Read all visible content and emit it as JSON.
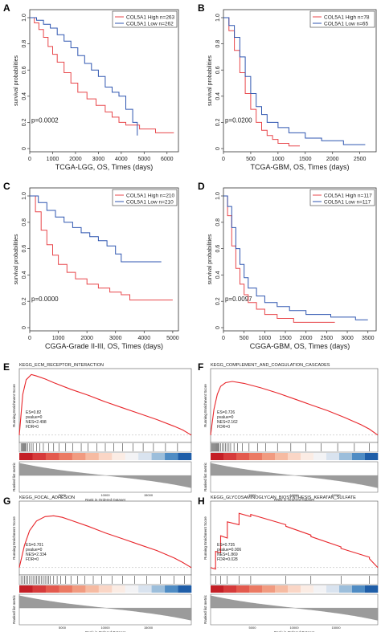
{
  "chart_data": [
    {
      "type": "line",
      "panel_label": "A",
      "xlabel": "TCGA-LGG, OS, Times (days)",
      "ylabel": "survival probabilities",
      "xlim": [
        0,
        6500
      ],
      "ylim": [
        0,
        1
      ],
      "xticks": [
        "0",
        "1000",
        "2000",
        "3000",
        "4000",
        "5000",
        "6000"
      ],
      "yticks": [
        "0",
        "0.2",
        "0.4",
        "0.6",
        "0.8",
        "1.0"
      ],
      "pvalue": "p=0.0002",
      "legend_position": "top-right",
      "series": [
        {
          "name": "COL5A1 High n=263",
          "color": "#e8474b",
          "x": [
            0,
            200,
            400,
            600,
            800,
            1000,
            1200,
            1500,
            1800,
            2100,
            2500,
            2900,
            3300,
            3600,
            3900,
            4200,
            4800,
            5500,
            6000,
            6300
          ],
          "y": [
            1.0,
            0.96,
            0.91,
            0.85,
            0.78,
            0.72,
            0.66,
            0.58,
            0.5,
            0.43,
            0.38,
            0.33,
            0.28,
            0.24,
            0.2,
            0.18,
            0.15,
            0.12,
            0.12,
            0.12
          ]
        },
        {
          "name": "COL5A1 Low n=262",
          "color": "#2f56b0",
          "x": [
            0,
            300,
            600,
            900,
            1200,
            1500,
            1800,
            2100,
            2400,
            2700,
            3000,
            3300,
            3600,
            3900,
            4200,
            4500,
            4700
          ],
          "y": [
            1.0,
            0.98,
            0.95,
            0.92,
            0.87,
            0.82,
            0.77,
            0.71,
            0.65,
            0.6,
            0.55,
            0.47,
            0.43,
            0.4,
            0.3,
            0.2,
            0.1
          ]
        }
      ]
    },
    {
      "type": "line",
      "panel_label": "B",
      "xlabel": "TCGA-GBM, OS, Times (days)",
      "ylabel": "survival probabilities",
      "xlim": [
        0,
        2800
      ],
      "ylim": [
        0,
        1
      ],
      "xticks": [
        "0",
        "500",
        "1000",
        "1500",
        "2000",
        "2500"
      ],
      "yticks": [
        "0",
        "0.2",
        "0.4",
        "0.6",
        "0.8",
        "1.0"
      ],
      "pvalue": "p=0.0200",
      "legend_position": "top-right",
      "series": [
        {
          "name": "COL5A1 High n=78",
          "color": "#e8474b",
          "x": [
            0,
            100,
            200,
            300,
            400,
            500,
            600,
            700,
            800,
            900,
            1000,
            1200,
            1400
          ],
          "y": [
            1.0,
            0.9,
            0.75,
            0.58,
            0.42,
            0.3,
            0.2,
            0.14,
            0.1,
            0.07,
            0.04,
            0.02,
            0.02
          ]
        },
        {
          "name": "COL5A1 Low n=65",
          "color": "#2f56b0",
          "x": [
            0,
            100,
            200,
            300,
            400,
            500,
            600,
            700,
            800,
            1000,
            1200,
            1500,
            1800,
            2200,
            2600
          ],
          "y": [
            1.0,
            0.94,
            0.85,
            0.7,
            0.55,
            0.42,
            0.32,
            0.26,
            0.2,
            0.16,
            0.12,
            0.08,
            0.06,
            0.03,
            0.03
          ]
        }
      ]
    },
    {
      "type": "line",
      "panel_label": "C",
      "xlabel": "CGGA-Grade II-III, OS, Times (days)",
      "ylabel": "survival probabilities",
      "xlim": [
        0,
        5200
      ],
      "ylim": [
        0,
        1
      ],
      "xticks": [
        "0",
        "1000",
        "2000",
        "3000",
        "4000",
        "5000"
      ],
      "yticks": [
        "0",
        "0.2",
        "0.4",
        "0.6",
        "0.8",
        "1.0"
      ],
      "pvalue": "p=0.0000",
      "legend_position": "top-right",
      "series": [
        {
          "name": "COL5A1 High n=210",
          "color": "#e8474b",
          "x": [
            0,
            200,
            400,
            600,
            800,
            1000,
            1300,
            1600,
            2000,
            2400,
            2800,
            3200,
            3500,
            4000,
            5000
          ],
          "y": [
            1.0,
            0.88,
            0.74,
            0.63,
            0.55,
            0.48,
            0.42,
            0.37,
            0.33,
            0.3,
            0.27,
            0.25,
            0.21,
            0.21,
            0.21
          ]
        },
        {
          "name": "COL5A1 Low n=210",
          "color": "#2f56b0",
          "x": [
            0,
            300,
            600,
            900,
            1200,
            1500,
            1800,
            2100,
            2400,
            2700,
            3000,
            3200,
            4000,
            4600
          ],
          "y": [
            1.0,
            0.95,
            0.89,
            0.84,
            0.8,
            0.76,
            0.72,
            0.69,
            0.66,
            0.62,
            0.56,
            0.5,
            0.5,
            0.5
          ]
        }
      ]
    },
    {
      "type": "line",
      "panel_label": "D",
      "xlabel": "CGGA-GBM, OS, Times (days)",
      "ylabel": "survival probabilities",
      "xlim": [
        0,
        3700
      ],
      "ylim": [
        0,
        1
      ],
      "xticks": [
        "0",
        "500",
        "1000",
        "1500",
        "2000",
        "2500",
        "3000",
        "3500"
      ],
      "yticks": [
        "0",
        "0.2",
        "0.4",
        "0.6",
        "0.8",
        "1.0"
      ],
      "pvalue": "p=0.0097",
      "legend_position": "top-right",
      "series": [
        {
          "name": "COL5A1 High n=117",
          "color": "#e8474b",
          "x": [
            0,
            100,
            200,
            300,
            400,
            500,
            600,
            800,
            1000,
            1300,
            1700,
            2200,
            2700
          ],
          "y": [
            1.0,
            0.85,
            0.62,
            0.45,
            0.33,
            0.25,
            0.19,
            0.14,
            0.1,
            0.07,
            0.04,
            0.04,
            0.04
          ]
        },
        {
          "name": "COL5A1 Low n=117",
          "color": "#2f56b0",
          "x": [
            0,
            100,
            200,
            300,
            400,
            500,
            600,
            800,
            1000,
            1300,
            1600,
            2000,
            2600,
            3200,
            3500
          ],
          "y": [
            1.0,
            0.92,
            0.76,
            0.6,
            0.48,
            0.38,
            0.3,
            0.24,
            0.19,
            0.16,
            0.13,
            0.1,
            0.08,
            0.06,
            0.06
          ]
        }
      ]
    },
    {
      "type": "line",
      "panel_label": "E",
      "title": "KEGG_ECM_RECEPTOR_INTERACTION",
      "ylabel": "Running Enrichment Score",
      "ylabel_bottom": "Ranked list metric",
      "xlabel": "Rank in Ordered Dataset",
      "xticks": [
        "5000",
        "10000",
        "15000"
      ],
      "stats": [
        "ES=0.82",
        "pvalue=0",
        "NES=2.498",
        "FDR=0"
      ],
      "curve": {
        "color": "#e8262b",
        "x": [
          0,
          0.02,
          0.04,
          0.07,
          0.1,
          0.15,
          0.2,
          0.3,
          0.4,
          0.5,
          0.6,
          0.7,
          0.8,
          0.9,
          0.95,
          1.0
        ],
        "y": [
          0,
          0.55,
          0.75,
          0.82,
          0.8,
          0.76,
          0.71,
          0.62,
          0.54,
          0.45,
          0.37,
          0.29,
          0.21,
          0.12,
          0.07,
          0
        ]
      },
      "hits": [
        0.01,
        0.015,
        0.02,
        0.025,
        0.03,
        0.035,
        0.04,
        0.05,
        0.06,
        0.07,
        0.08,
        0.1,
        0.12,
        0.14,
        0.17,
        0.2,
        0.23,
        0.27,
        0.31,
        0.36,
        0.4,
        0.45,
        0.5,
        0.55,
        0.6,
        0.66,
        0.72,
        0.78,
        0.85,
        0.92
      ]
    },
    {
      "type": "line",
      "panel_label": "F",
      "title": "KEGG_COMPLEMENT_AND_COAGULATION_CASCADES",
      "ylabel": "Running Enrichment Score",
      "ylabel_bottom": "Ranked list metric",
      "xlabel": "Rank in Ordered Dataset",
      "xticks": [
        "5000",
        "10000",
        "15000"
      ],
      "stats": [
        "ES=0.726",
        "pvalue=0",
        "NES=2.162",
        "FDR=0"
      ],
      "curve": {
        "color": "#e8262b",
        "x": [
          0,
          0.02,
          0.04,
          0.06,
          0.09,
          0.13,
          0.2,
          0.3,
          0.4,
          0.5,
          0.6,
          0.7,
          0.8,
          0.9,
          0.95,
          1.0
        ],
        "y": [
          0,
          0.35,
          0.55,
          0.66,
          0.71,
          0.726,
          0.7,
          0.64,
          0.57,
          0.49,
          0.41,
          0.33,
          0.24,
          0.14,
          0.08,
          0
        ]
      },
      "hits": [
        0.005,
        0.01,
        0.015,
        0.02,
        0.025,
        0.03,
        0.035,
        0.04,
        0.045,
        0.05,
        0.06,
        0.07,
        0.08,
        0.09,
        0.1,
        0.11,
        0.12,
        0.14,
        0.16,
        0.19,
        0.23,
        0.28,
        0.33,
        0.4,
        0.48,
        0.57,
        0.66,
        0.76,
        0.86,
        0.95
      ]
    },
    {
      "type": "line",
      "panel_label": "G",
      "title": "KEGG_FOCAL_ADHESION",
      "ylabel": "Running Enrichment Score",
      "ylabel_bottom": "Ranked list metric",
      "xlabel": "Rank in Ordered Dataset",
      "xticks": [
        "5000",
        "10000",
        "15000"
      ],
      "stats": [
        "ES=0.701",
        "pvalue=0",
        "NES=2.334",
        "FDR=0"
      ],
      "curve": {
        "color": "#e8262b",
        "x": [
          0,
          0.03,
          0.06,
          0.1,
          0.15,
          0.2,
          0.25,
          0.3,
          0.4,
          0.5,
          0.6,
          0.7,
          0.8,
          0.9,
          0.95,
          1.0
        ],
        "y": [
          0,
          0.3,
          0.5,
          0.63,
          0.69,
          0.701,
          0.68,
          0.64,
          0.56,
          0.47,
          0.39,
          0.31,
          0.23,
          0.13,
          0.07,
          0
        ]
      },
      "hits": [
        0.01,
        0.02,
        0.03,
        0.04,
        0.05,
        0.06,
        0.07,
        0.08,
        0.09,
        0.1,
        0.11,
        0.12,
        0.13,
        0.14,
        0.15,
        0.16,
        0.17,
        0.18,
        0.2,
        0.22,
        0.24,
        0.27,
        0.3,
        0.34,
        0.38,
        0.43,
        0.48,
        0.54,
        0.6,
        0.67,
        0.74,
        0.82,
        0.9,
        0.96
      ]
    },
    {
      "type": "line",
      "panel_label": "H",
      "title": "KEGG_GLYCOSAMINOGLYCAN_BIOSYNTHESIS_KERATAN_SULFATE",
      "ylabel": "Running Enrichment Score",
      "ylabel_bottom": "Ranked list metric",
      "xlabel": "Rank in Ordered Dataset",
      "xticks": [
        "5000",
        "10000",
        "15000"
      ],
      "stats": [
        "ES=0.735",
        "pvalue=0.006",
        "NES=1.869",
        "FDR=0.028"
      ],
      "curve": {
        "color": "#e8262b",
        "x": [
          0,
          0.03,
          0.03,
          0.06,
          0.06,
          0.1,
          0.1,
          0.17,
          0.17,
          0.24,
          0.24,
          0.45,
          0.45,
          0.6,
          0.6,
          0.78,
          0.78,
          0.95,
          0.95,
          1.0
        ],
        "y": [
          0,
          -0.02,
          0.22,
          0.2,
          0.43,
          0.4,
          0.62,
          0.58,
          0.735,
          0.69,
          0.72,
          0.58,
          0.56,
          0.44,
          0.42,
          0.28,
          0.26,
          0.14,
          0.12,
          0
        ]
      },
      "hits": [
        0.03,
        0.06,
        0.1,
        0.17,
        0.24,
        0.45,
        0.6,
        0.78,
        0.95
      ]
    }
  ]
}
